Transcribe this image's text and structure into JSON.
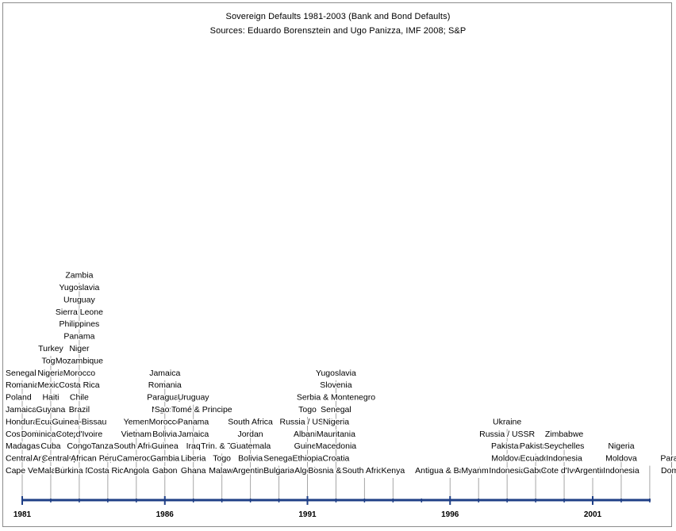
{
  "chart_data": {
    "type": "timeline",
    "title": "Sovereign Defaults 1981-2003 (Bank and Bond Defaults)",
    "subtitle": "Sources: Eduardo Borensztein and Ugo Panizza, IMF 2008; S&P",
    "axis_ticks": [
      "1981",
      "1986",
      "1991",
      "1996",
      "2001"
    ],
    "xlim": [
      1981,
      2003
    ],
    "events": [
      {
        "year": 1981,
        "countries": [
          "Senegal",
          "Romania",
          "Poland",
          "Jamaica",
          "Honduras",
          "Costa Rica",
          "Madagascar",
          "Central African Rep.",
          "Cape Verde"
        ]
      },
      {
        "year": 1982,
        "countries": [
          "Turkey",
          "Togo",
          "Nigeria",
          "Mexico",
          "Haiti",
          "Guyana",
          "Ecuador",
          "Dominican Rep.",
          "Cuba",
          "Argentina",
          "Malawi"
        ]
      },
      {
        "year": 1983,
        "countries": [
          "Zambia",
          "Yugoslavia",
          "Uruguay",
          "Sierra Leone",
          "Philippines",
          "Panama",
          "Niger",
          "Mozambique",
          "Morocco",
          "Costa Rica",
          "Chile",
          "Brazil",
          "Guinea-Bissau",
          "Cote d'Ivoire",
          "Congo",
          "Central African Rep.",
          "Burkina Faso"
        ]
      },
      {
        "year": 1984,
        "countries": [
          "Tanzania",
          "Peru",
          "Costa Rica"
        ]
      },
      {
        "year": 1985,
        "countries": [
          "Yemen",
          "Vietnam",
          "South Africa",
          "Cameroon",
          "Angola"
        ]
      },
      {
        "year": 1986,
        "countries": [
          "Jamaica",
          "Romania",
          "Paraguay",
          "Nigeria",
          "Morocco",
          "Bolivia",
          "Guinea",
          "Gambia",
          "Gabon"
        ]
      },
      {
        "year": 1987,
        "countries": [
          "Uruguay",
          "Sao Tomé & Principe",
          "Panama",
          "Jamaica",
          "Iraq",
          "Liberia",
          "Ghana"
        ]
      },
      {
        "year": 1988,
        "countries": [
          "Trin. & Tob.",
          "Togo",
          "Malawi"
        ]
      },
      {
        "year": 1989,
        "countries": [
          "South Africa",
          "Jordan",
          "Guatemala",
          "Bolivia",
          "Argentina"
        ]
      },
      {
        "year": 1990,
        "countries": [
          "Senegal",
          "Bulgaria"
        ]
      },
      {
        "year": 1991,
        "countries": [
          "Togo",
          "Russia / USSR",
          "Albania",
          "Guinea",
          "Ethiopia",
          "Algeria"
        ]
      },
      {
        "year": 1992,
        "countries": [
          "Yugoslavia",
          "Slovenia",
          "Serbia & Montenegro",
          "Senegal",
          "Nigeria",
          "Mauritania",
          "Macedonia",
          "Croatia",
          "Bosnia & Herz."
        ]
      },
      {
        "year": 1993,
        "countries": [
          "South Africa"
        ]
      },
      {
        "year": 1994,
        "countries": [
          "Kenya"
        ]
      },
      {
        "year": 1996,
        "countries": [
          "Antigua & Barbuda"
        ]
      },
      {
        "year": 1997,
        "countries": [
          "Myanmar"
        ]
      },
      {
        "year": 1998,
        "countries": [
          "Ukraine",
          "Russia / USSR",
          "Pakistan",
          "Moldova",
          "Indonesia"
        ]
      },
      {
        "year": 1999,
        "countries": [
          "Pakistan",
          "Ecuador",
          "Gabon"
        ]
      },
      {
        "year": 2000,
        "countries": [
          "Zimbabwe",
          "Seychelles",
          "Indonesia",
          "Cote d'Ivoire"
        ]
      },
      {
        "year": 2001,
        "countries": [
          "Argentina"
        ]
      },
      {
        "year": 2002,
        "countries": [
          "Nigeria",
          "Moldova",
          "Indonesia"
        ]
      },
      {
        "year": 2003,
        "countries": [
          "Paraguay",
          "Dominica"
        ]
      }
    ]
  }
}
